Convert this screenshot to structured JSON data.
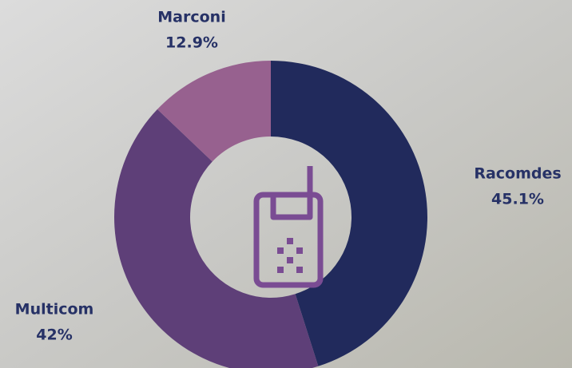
{
  "chart_data": {
    "type": "pie",
    "categories": [
      "Racomdes",
      "Multicom",
      "Marconi"
    ],
    "values": [
      45.1,
      42,
      12.9
    ],
    "value_labels": [
      "45.1%",
      "42%",
      "12.9%"
    ],
    "colors": [
      "#212a5c",
      "#5e3f78",
      "#97618f"
    ]
  }
}
